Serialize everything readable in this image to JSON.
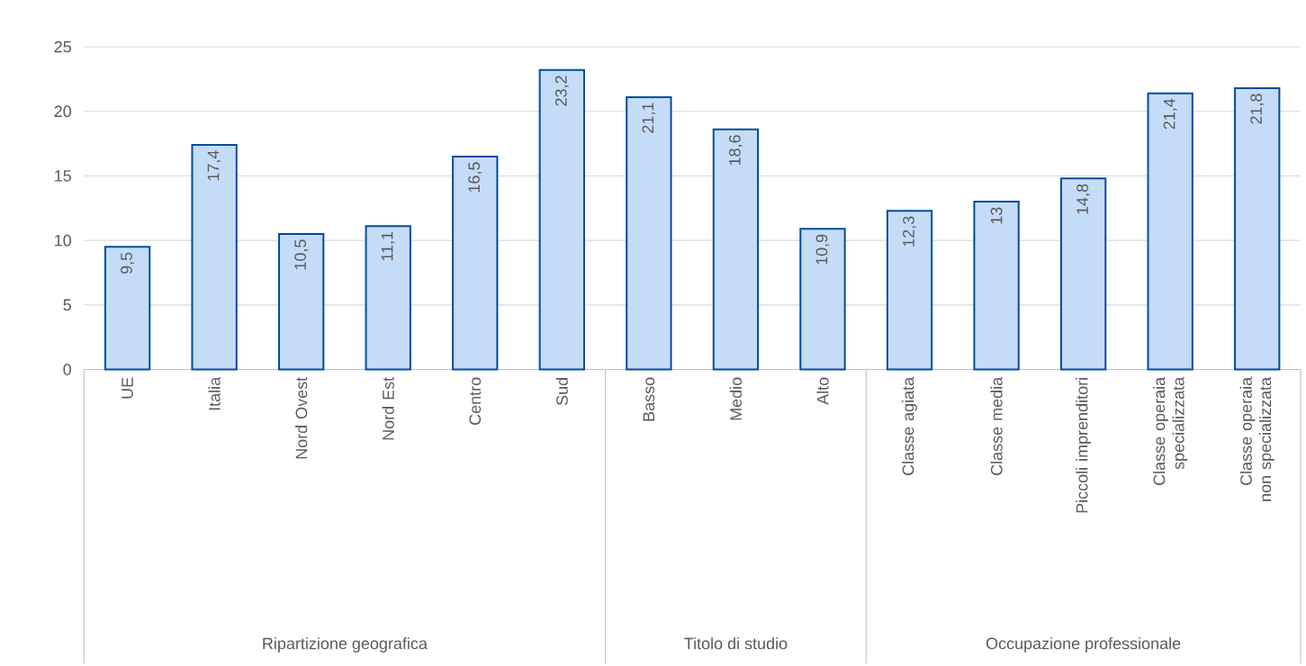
{
  "chart_data": {
    "type": "bar",
    "categories": [
      "UE",
      "Italia",
      "Nord Ovest",
      "Nord Est",
      "Centro",
      "Sud",
      "Basso",
      "Medio",
      "Alto",
      "Classe agiata",
      "Classe media",
      "Piccoli imprenditori",
      "Classe operaia specializzata",
      "Classe operaia non specializzata"
    ],
    "values": [
      9.5,
      17.4,
      10.5,
      11.1,
      16.5,
      23.2,
      21.1,
      18.6,
      10.9,
      12.3,
      13,
      14.8,
      21.4,
      21.8
    ],
    "value_labels": [
      "9,5",
      "17,4",
      "10,5",
      "11,1",
      "16,5",
      "23,2",
      "21,1",
      "18,6",
      "10,9",
      "12,3",
      "13",
      "14,8",
      "21,4",
      "21,8"
    ],
    "color": "#c5dcf8",
    "ylim": [
      0,
      25
    ],
    "yticks": [
      0,
      5,
      10,
      15,
      20,
      25
    ],
    "grid": "y",
    "annotations": [
      "Ripartizione geografica",
      "Titolo di studio",
      "Occupazione professionale"
    ]
  }
}
